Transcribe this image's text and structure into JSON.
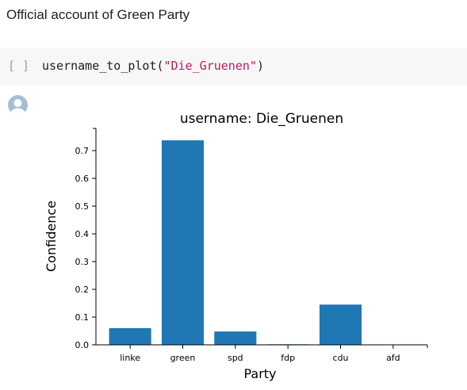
{
  "markdown": {
    "text": "Official account of Green Party"
  },
  "code_cell": {
    "run_indicator": "[ ]",
    "code_prefix": "username_to_plot(",
    "code_string": "\"Die_Gruenen\"",
    "code_suffix": ")"
  },
  "output": {
    "avatar_icon": "user-avatar-icon"
  },
  "colors": {
    "bar": "#1f77b4",
    "string": "#c2185b",
    "cell_bg": "#f7f7f7"
  },
  "chart_data": {
    "type": "bar",
    "title": "username: Die_Gruenen",
    "xlabel": "Party",
    "ylabel": "Confidence",
    "categories": [
      "linke",
      "green",
      "spd",
      "fdp",
      "cdu",
      "afd"
    ],
    "values": [
      0.06,
      0.737,
      0.048,
      0.002,
      0.145,
      0.001
    ],
    "ylim": [
      0,
      0.78
    ],
    "yticks": [
      0.0,
      0.1,
      0.2,
      0.3,
      0.4,
      0.5,
      0.6,
      0.7
    ],
    "ytick_labels": [
      "0.0",
      "0.1",
      "0.2",
      "0.3",
      "0.4",
      "0.5",
      "0.6",
      "0.7"
    ],
    "grid": false,
    "legend": "none"
  }
}
